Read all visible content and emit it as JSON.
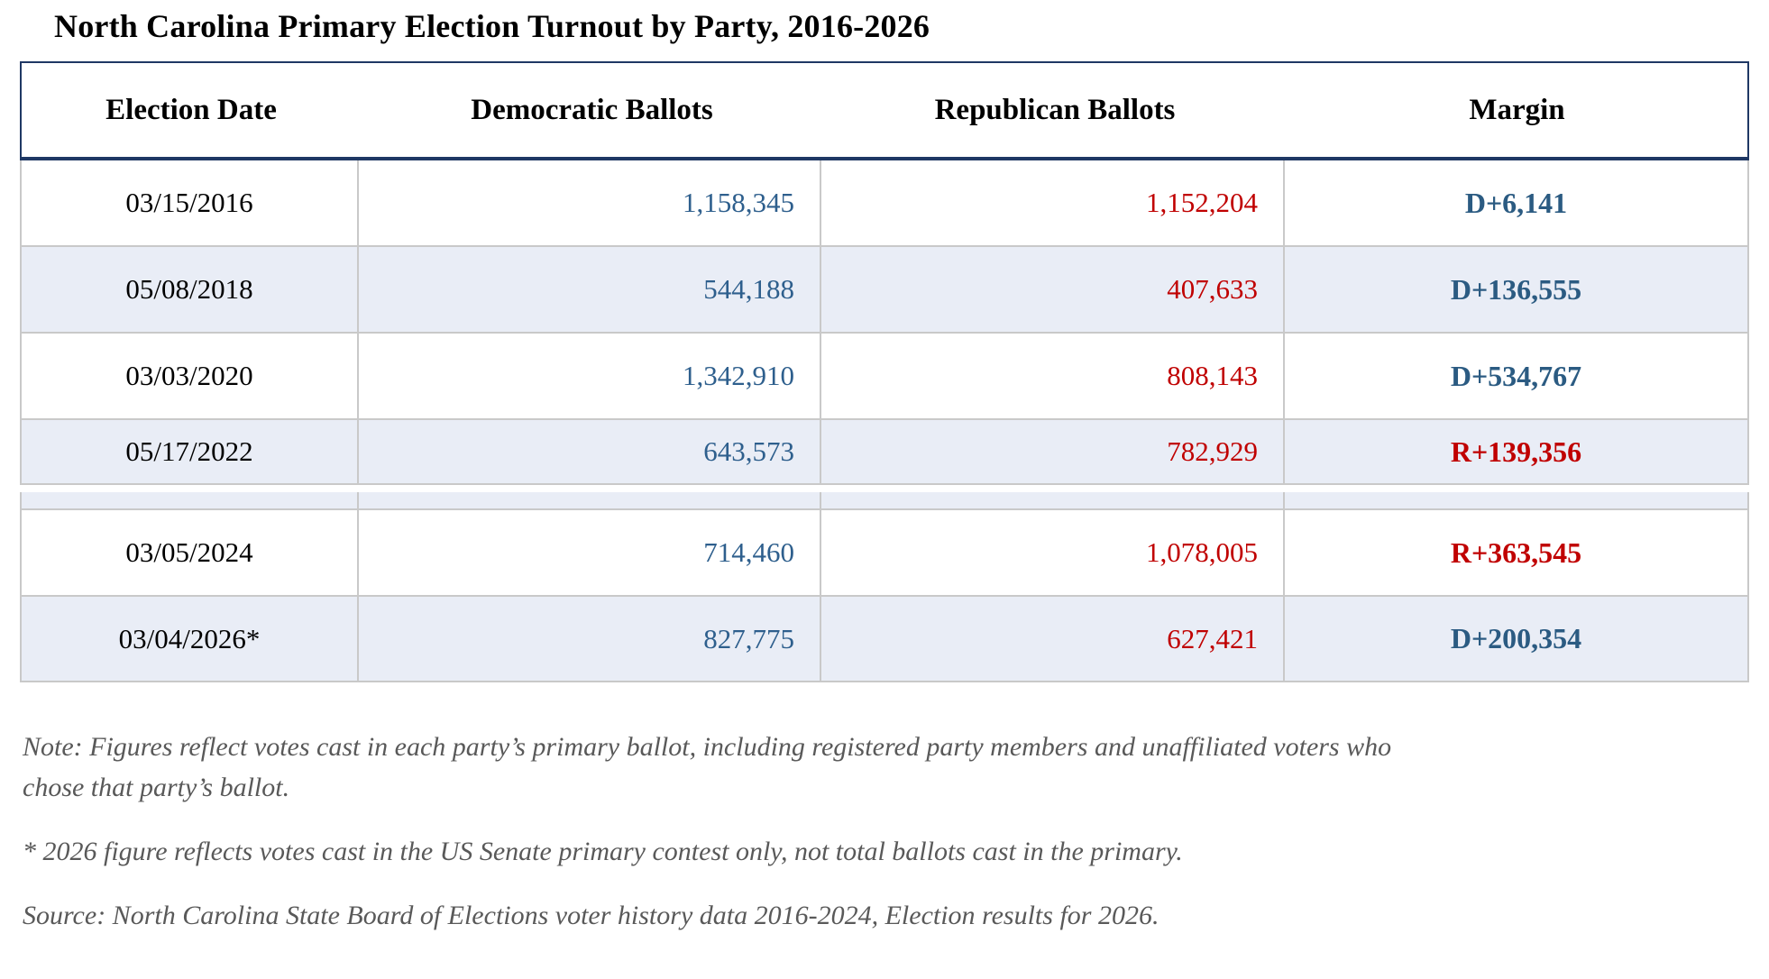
{
  "title": "North Carolina Primary Election Turnout by Party, 2016-2026",
  "table": {
    "columns": [
      "Election Date",
      "Democratic Ballots",
      "Republican Ballots",
      "Margin"
    ],
    "rows": [
      {
        "date": "03/15/2016",
        "dem": "1,158,345",
        "rep": "1,152,204",
        "margin": "D+6,141",
        "margin_party": "D"
      },
      {
        "date": "05/08/2018",
        "dem": "544,188",
        "rep": "407,633",
        "margin": "D+136,555",
        "margin_party": "D"
      },
      {
        "date": "03/03/2020",
        "dem": "1,342,910",
        "rep": "808,143",
        "margin": "D+534,767",
        "margin_party": "D"
      },
      {
        "date": "05/17/2022",
        "dem": "643,573",
        "rep": "782,929",
        "margin": "R+139,356",
        "margin_party": "R"
      },
      {
        "date": "03/05/2024",
        "dem": "714,460",
        "rep": "1,078,005",
        "margin": "R+363,545",
        "margin_party": "R"
      },
      {
        "date": "03/04/2026*",
        "dem": "827,775",
        "rep": "627,421",
        "margin": "D+200,354",
        "margin_party": "D"
      }
    ]
  },
  "notes": {
    "note": "Note: Figures reflect votes cast in each party’s primary ballot, including registered party members and unaffiliated voters who chose that party’s ballot.",
    "asterisk": "* 2026 figure reflects votes cast in the US Senate primary contest only, not total ballots cast in the primary.",
    "source": "Source: North Carolina State Board of Elections voter history data 2016-2024, Election results for 2026."
  },
  "colors": {
    "title_text": "#000000",
    "header_border": "#1F3864",
    "grid_line": "#C9C9C9",
    "row_alt_bg": "#E9EDF6",
    "dem_value": "#2E5F8D",
    "rep_value": "#C00000",
    "dem_margin": "#2B5B82",
    "rep_margin": "#C00000",
    "note_text": "#595959"
  }
}
